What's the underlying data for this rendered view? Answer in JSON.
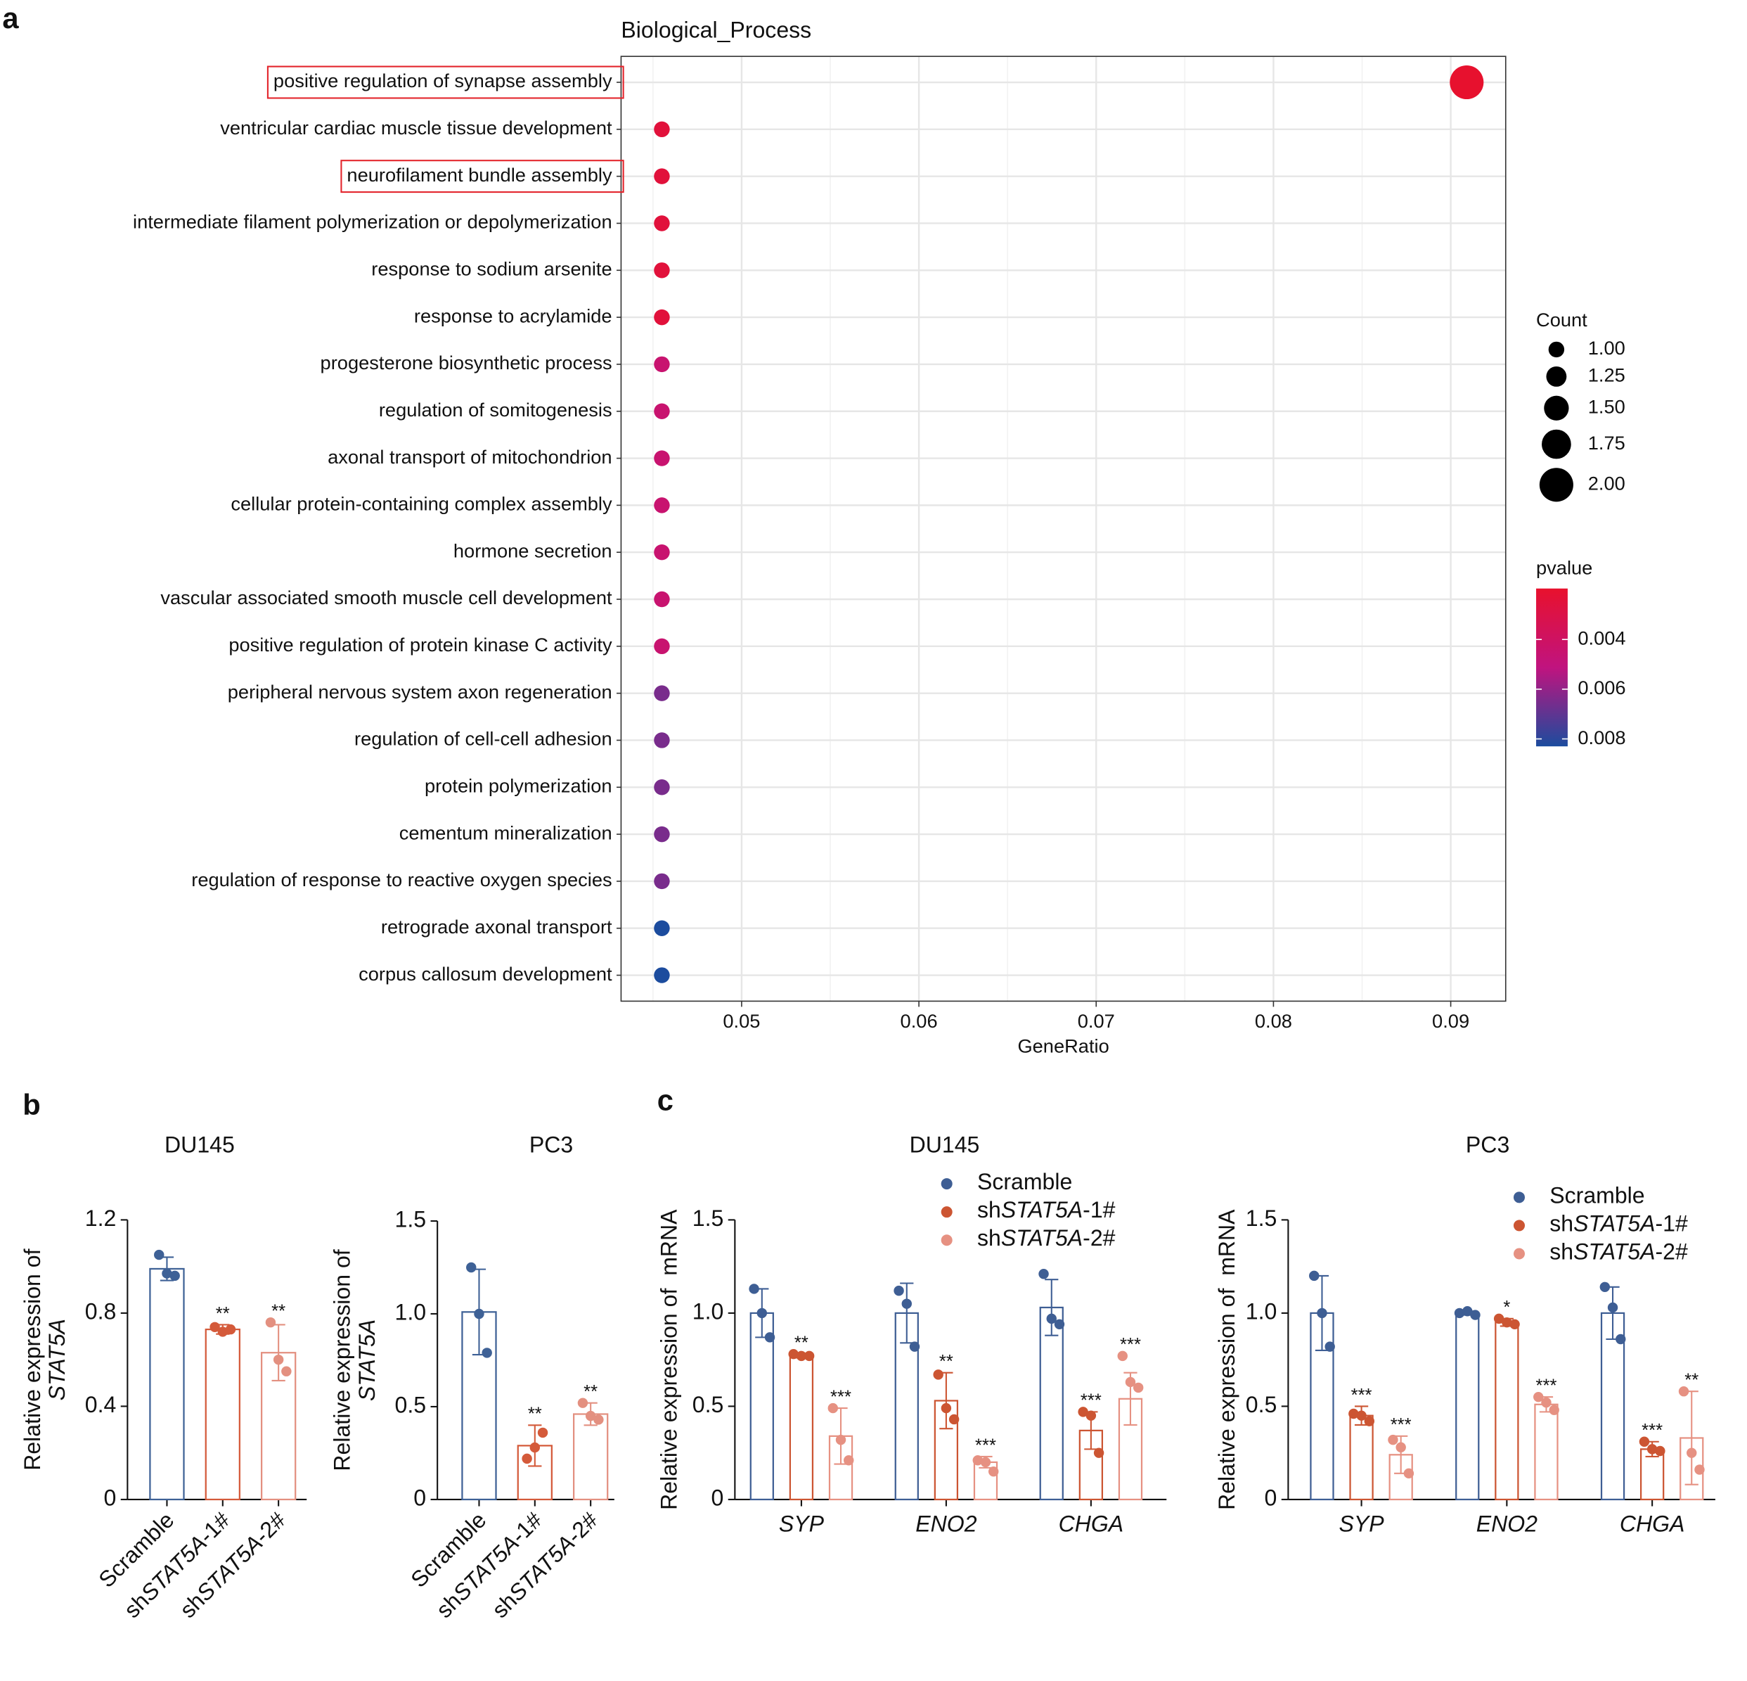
{
  "panel_labels": [
    "a",
    "b",
    "c"
  ],
  "chart_data": [
    {
      "type": "dot",
      "title": "Biological_Process",
      "xlabel": "GeneRatio",
      "categories": [
        "positive regulation of synapse assembly",
        "ventricular cardiac muscle tissue development",
        "neurofilament bundle assembly",
        "intermediate filament polymerization or depolymerization",
        "response to sodium arsenite",
        "response to acrylamide",
        "progesterone biosynthetic process",
        "regulation of somitogenesis",
        "axonal transport of mitochondrion",
        "cellular protein-containing complex assembly",
        "hormone secretion",
        "vascular associated smooth muscle cell development",
        "positive regulation of protein kinase C activity",
        "peripheral nervous system axon regeneration",
        "regulation of cell-cell adhesion",
        "protein polymerization",
        "cementum mineralization",
        "regulation of response to reactive oxygen species",
        "retrograde axonal transport",
        "corpus callosum development"
      ],
      "values": [
        0.0909,
        0.0455,
        0.0455,
        0.0455,
        0.0455,
        0.0455,
        0.0455,
        0.0455,
        0.0455,
        0.0455,
        0.0455,
        0.0455,
        0.0455,
        0.0455,
        0.0455,
        0.0455,
        0.0455,
        0.0455,
        0.0455,
        0.0455
      ],
      "counts": [
        2,
        1,
        1,
        1,
        1,
        1,
        1,
        1,
        1,
        1,
        1,
        1,
        1,
        1,
        1,
        1,
        1,
        1,
        1,
        1
      ],
      "pvalues": [
        0.002,
        0.0025,
        0.0025,
        0.0025,
        0.0025,
        0.0025,
        0.0045,
        0.0045,
        0.0045,
        0.0045,
        0.0045,
        0.0045,
        0.0045,
        0.0065,
        0.0065,
        0.0065,
        0.0065,
        0.0065,
        0.0083,
        0.0083
      ],
      "highlight": [
        0,
        2
      ],
      "highlight_color": "#e3242b",
      "xlim": [
        0.0432,
        0.0931
      ],
      "xticks": [
        0.05,
        0.06,
        0.07,
        0.08,
        0.09
      ],
      "minor_xticks": [
        0.045,
        0.055,
        0.065,
        0.075,
        0.085
      ],
      "grid": true,
      "size_title": "Count",
      "size_legend": [
        {
          "value": 1,
          "label": "1.00"
        },
        {
          "value": 1.25,
          "label": "1.25"
        },
        {
          "value": 1.5,
          "label": "1.50"
        },
        {
          "value": 1.75,
          "label": "1.75"
        },
        {
          "value": 2,
          "label": "2.00"
        }
      ],
      "color_title": "pvalue",
      "color_lim": [
        0.00195,
        0.0083
      ],
      "color_ticks": [
        0.004,
        0.006,
        0.008
      ],
      "colorscale": [
        "#e8112d",
        "#c0137f",
        "#1c4c9e"
      ]
    },
    {
      "type": "bar",
      "title": "DU145",
      "ylabel": "Relative expression of",
      "ylabel_gene": "STAT5A",
      "categories": [
        "Scramble",
        "shSTAT5A-1#",
        "shSTAT5A-2#"
      ],
      "colors": [
        "#3e6196",
        "#d45a3a",
        "#e39080"
      ],
      "values": [
        0.99,
        0.73,
        0.63
      ],
      "errors": [
        0.05,
        0.02,
        0.12
      ],
      "points": [
        [
          1.05,
          0.97,
          0.96
        ],
        [
          0.74,
          0.72,
          0.73
        ],
        [
          0.76,
          0.6,
          0.55
        ]
      ],
      "annotations": [
        null,
        "**",
        "**"
      ],
      "ylim": [
        0,
        1.2
      ],
      "yticks": [
        0,
        0.4,
        0.8,
        1.2
      ]
    },
    {
      "type": "bar",
      "title": "PC3",
      "ylabel": "Relative expression of",
      "ylabel_gene": "STAT5A",
      "categories": [
        "Scramble",
        "shSTAT5A-1#",
        "shSTAT5A-2#"
      ],
      "colors": [
        "#3e6196",
        "#d45a3a",
        "#e39080"
      ],
      "values": [
        1.01,
        0.29,
        0.46
      ],
      "errors": [
        0.23,
        0.11,
        0.06
      ],
      "points": [
        [
          1.25,
          1.0,
          0.79
        ],
        [
          0.22,
          0.28,
          0.36
        ],
        [
          0.52,
          0.45,
          0.43
        ]
      ],
      "annotations": [
        null,
        "**",
        "**"
      ],
      "ylim": [
        0,
        1.5
      ],
      "yticks": [
        0,
        0.5,
        {
          "value": 1,
          "label": "1.0"
        },
        1.5
      ]
    },
    {
      "type": "bar",
      "title": "DU145",
      "ylabel": "Relative expression of  mRNA",
      "categories": [
        "SYP",
        "ENO2",
        "CHGA"
      ],
      "series": [
        {
          "name": "Scramble",
          "color": "#3e5e94",
          "values": [
            1.0,
            1.0,
            1.03
          ],
          "errors": [
            0.13,
            0.16,
            0.15
          ],
          "points": [
            [
              1.13,
              1.0,
              0.87
            ],
            [
              1.12,
              1.05,
              0.82
            ],
            [
              1.21,
              0.97,
              0.94
            ]
          ],
          "annotations": [
            null,
            null,
            null
          ]
        },
        {
          "name": "shSTAT5A-1#",
          "color": "#cc5532",
          "values": [
            0.77,
            0.53,
            0.37
          ],
          "errors": [
            0.01,
            0.15,
            0.1
          ],
          "points": [
            [
              0.78,
              0.77,
              0.77
            ],
            [
              0.67,
              0.49,
              0.43
            ],
            [
              0.47,
              0.45,
              0.25
            ]
          ],
          "annotations": [
            "**",
            "**",
            "***"
          ]
        },
        {
          "name": "shSTAT5A-2#",
          "color": "#e69182",
          "values": [
            0.34,
            0.2,
            0.54
          ],
          "errors": [
            0.15,
            0.03,
            0.14
          ],
          "points": [
            [
              0.49,
              0.32,
              0.21
            ],
            [
              0.21,
              0.2,
              0.15
            ],
            [
              0.77,
              0.63,
              0.6
            ]
          ],
          "annotations": [
            "***",
            "***",
            "***"
          ]
        }
      ],
      "ylim": [
        0,
        1.5
      ],
      "yticks": [
        0,
        0.5,
        {
          "value": 1,
          "label": "1.0"
        },
        1.5
      ]
    },
    {
      "type": "bar",
      "title": "PC3",
      "ylabel": "Relative expression of  mRNA",
      "categories": [
        "SYP",
        "ENO2",
        "CHGA"
      ],
      "series": [
        {
          "name": "Scramble",
          "color": "#3e5e94",
          "values": [
            1.0,
            1.0,
            1.0
          ],
          "errors": [
            0.2,
            0.01,
            0.14
          ],
          "points": [
            [
              1.2,
              1.0,
              0.82
            ],
            [
              1.0,
              1.01,
              0.99
            ],
            [
              1.14,
              1.03,
              0.86
            ]
          ],
          "annotations": [
            null,
            null,
            null
          ]
        },
        {
          "name": "shSTAT5A-1#",
          "color": "#cc5532",
          "values": [
            0.45,
            0.95,
            0.27
          ],
          "errors": [
            0.05,
            0.02,
            0.04
          ],
          "points": [
            [
              0.46,
              0.45,
              0.42
            ],
            [
              0.97,
              0.95,
              0.94
            ],
            [
              0.31,
              0.27,
              0.26
            ]
          ],
          "annotations": [
            "***",
            "*",
            "***"
          ]
        },
        {
          "name": "shSTAT5A-2#",
          "color": "#e69182",
          "values": [
            0.24,
            0.51,
            0.33
          ],
          "errors": [
            0.1,
            0.04,
            0.25
          ],
          "points": [
            [
              0.32,
              0.28,
              0.14
            ],
            [
              0.55,
              0.52,
              0.48
            ],
            [
              0.58,
              0.25,
              0.16
            ]
          ],
          "annotations": [
            "***",
            "***",
            "**"
          ]
        }
      ],
      "ylim": [
        0,
        1.5
      ],
      "yticks": [
        0,
        0.5,
        {
          "value": 1,
          "label": "1.0"
        },
        1.5
      ]
    }
  ]
}
